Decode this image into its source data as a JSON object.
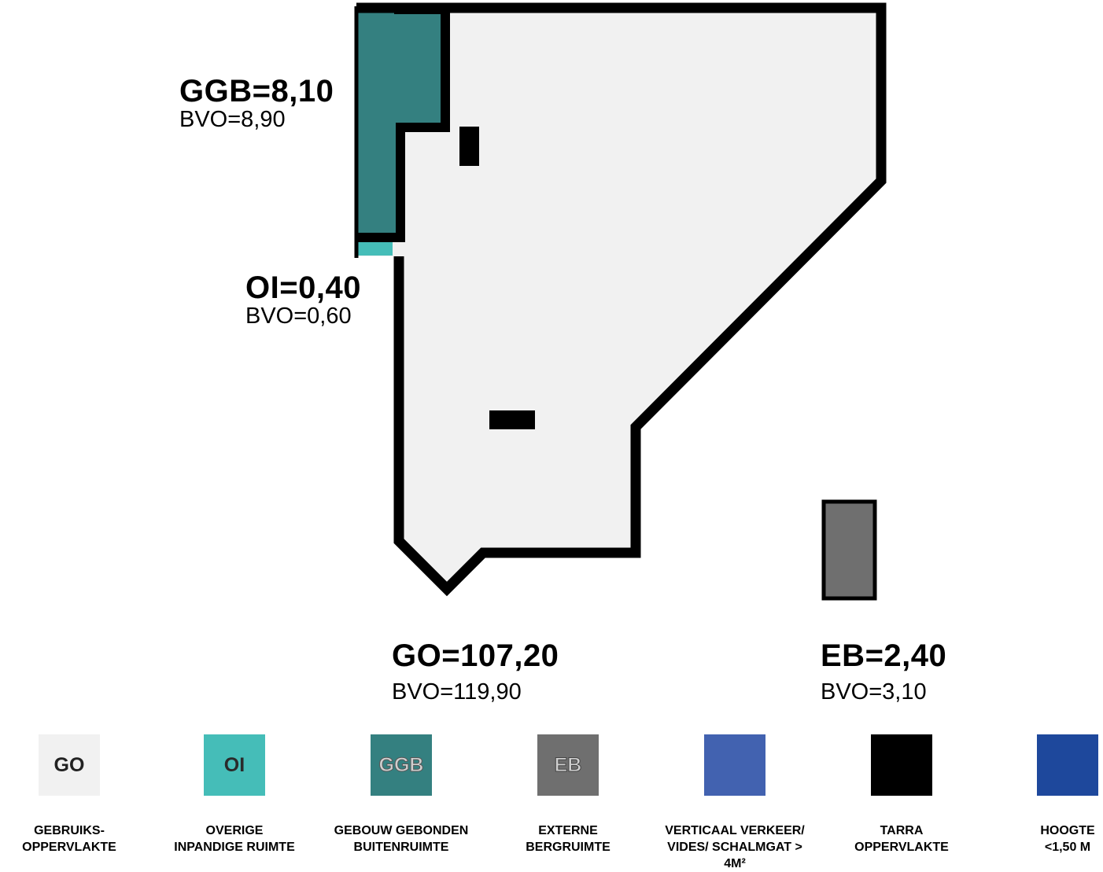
{
  "areas": {
    "ggb": {
      "value": "GGB=8,10",
      "bvo": "BVO=8,90"
    },
    "oi": {
      "value": "OI=0,40",
      "bvo": "BVO=0,60"
    },
    "go": {
      "value": "GO=107,20",
      "bvo": "BVO=119,90"
    },
    "eb": {
      "value": "EB=2,40",
      "bvo": "BVO=3,10"
    }
  },
  "colors": {
    "go": "#f1f1f1",
    "oi": "#45bdb8",
    "ggb": "#348080",
    "eb": "#6f6f6f",
    "verticaal_verkeer": "#4262b0",
    "tarra": "#000000",
    "hoogte": "#1e489c",
    "wall": "#000000"
  },
  "legend": [
    {
      "key": "go",
      "swatch_text": "GO",
      "caption": "GEBRUIKS-\nOPPERVLAKTE"
    },
    {
      "key": "oi",
      "swatch_text": "OI",
      "caption": "OVERIGE\nINPANDIGE RUIMTE"
    },
    {
      "key": "ggb",
      "swatch_text": "GGB",
      "caption": "GEBOUW GEBONDEN\nBUITENRUIMTE"
    },
    {
      "key": "eb",
      "swatch_text": "EB",
      "caption": "EXTERNE\nBERGRUIMTE"
    },
    {
      "key": "vv",
      "swatch_text": "",
      "caption": "VERTICAAL VERKEER/\nVIDES/ SCHALMGAT > 4M²"
    },
    {
      "key": "tarra",
      "swatch_text": "",
      "caption": "TARRA\nOPPERVLAKTE"
    },
    {
      "key": "hoogte",
      "swatch_text": "",
      "caption": "HOOGTE\n<1,50 M"
    }
  ]
}
